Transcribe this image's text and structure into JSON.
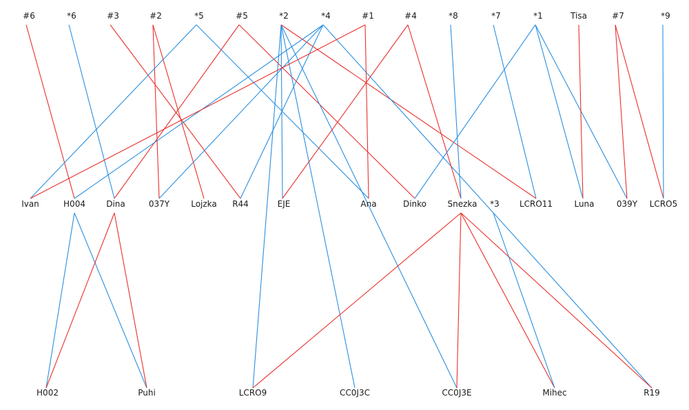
{
  "colors": {
    "red": "#e8302c",
    "blue": "#2a8fe0",
    "text": "#1a1a1a"
  },
  "top_row": [
    "#6",
    "*6",
    "#3",
    "#2",
    "*5",
    "#5",
    "*2",
    "*4",
    "#1",
    "#4",
    "*8",
    "*7",
    "*1",
    "Tisa",
    "#7",
    "*9"
  ],
  "middle_row": [
    "Ivan",
    "H004",
    "Dina",
    "037Y",
    "Lojzka",
    "R44",
    "EJE",
    "Ana",
    "Dinko",
    "Snezka",
    "*3",
    "LCRO11",
    "Luna",
    "039Y",
    "LCRO5"
  ],
  "bottom_row": [
    "H002",
    "Puhi",
    "LCRO9",
    "CC0J3C",
    "CC0J3E",
    "Mihec",
    "R19"
  ],
  "edges": [
    {
      "from": "#6",
      "to": "H004",
      "color": "red"
    },
    {
      "from": "*6",
      "to": "Dina",
      "color": "blue"
    },
    {
      "from": "#3",
      "to": "R44",
      "color": "red"
    },
    {
      "from": "#2",
      "to": "037Y",
      "color": "red"
    },
    {
      "from": "#2",
      "to": "Lojzka",
      "color": "red"
    },
    {
      "from": "*5",
      "to": "Ivan",
      "color": "blue"
    },
    {
      "from": "*5",
      "to": "Ana",
      "color": "blue"
    },
    {
      "from": "#5",
      "to": "Dina",
      "color": "red"
    },
    {
      "from": "#5",
      "to": "Dinko",
      "color": "red"
    },
    {
      "from": "*2",
      "to": "EJE",
      "color": "blue"
    },
    {
      "from": "*2",
      "to": "LCRO9",
      "color": "blue"
    },
    {
      "from": "*2",
      "to": "CC0J3C",
      "color": "blue"
    },
    {
      "from": "*2",
      "to": "CC0J3E",
      "color": "blue"
    },
    {
      "from": "*2",
      "to": "LCRO11",
      "color": "red"
    },
    {
      "from": "*4",
      "to": "H004",
      "color": "blue"
    },
    {
      "from": "*4",
      "to": "037Y",
      "color": "blue"
    },
    {
      "from": "*4",
      "to": "R44",
      "color": "blue"
    },
    {
      "from": "*4",
      "to": "R19",
      "color": "blue"
    },
    {
      "from": "#1",
      "to": "Ivan",
      "color": "red"
    },
    {
      "from": "#1",
      "to": "Ana",
      "color": "red"
    },
    {
      "from": "#4",
      "to": "EJE",
      "color": "red"
    },
    {
      "from": "#4",
      "to": "Snezka",
      "color": "red"
    },
    {
      "from": "*8",
      "to": "Snezka",
      "color": "blue"
    },
    {
      "from": "*7",
      "to": "LCRO11",
      "color": "blue"
    },
    {
      "from": "*1",
      "to": "Dinko",
      "color": "blue"
    },
    {
      "from": "*1",
      "to": "Luna",
      "color": "blue"
    },
    {
      "from": "*1",
      "to": "039Y",
      "color": "blue"
    },
    {
      "from": "Tisa",
      "to": "Luna",
      "color": "red"
    },
    {
      "from": "#7",
      "to": "039Y",
      "color": "red"
    },
    {
      "from": "#7",
      "to": "LCRO5",
      "color": "red"
    },
    {
      "from": "*9",
      "to": "LCRO5",
      "color": "blue"
    },
    {
      "from": "H004",
      "to": "H002",
      "color": "blue"
    },
    {
      "from": "H004",
      "to": "Puhi",
      "color": "blue"
    },
    {
      "from": "Dina",
      "to": "H002",
      "color": "red"
    },
    {
      "from": "Dina",
      "to": "Puhi",
      "color": "red"
    },
    {
      "from": "Snezka",
      "to": "LCRO9",
      "color": "red"
    },
    {
      "from": "Snezka",
      "to": "CC0J3E",
      "color": "red"
    },
    {
      "from": "Snezka",
      "to": "Mihec",
      "color": "red"
    },
    {
      "from": "Snezka",
      "to": "R19",
      "color": "red"
    },
    {
      "from": "*3",
      "to": "Mihec",
      "color": "blue"
    }
  ]
}
